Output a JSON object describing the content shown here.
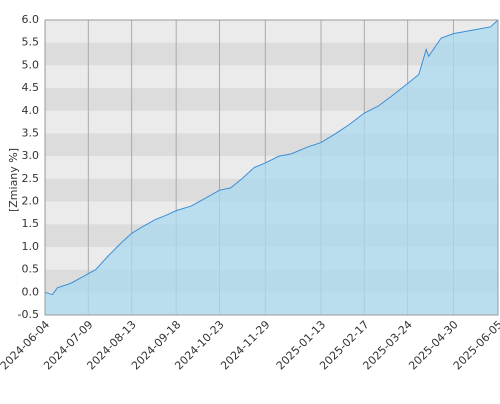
{
  "chart_data": {
    "type": "area",
    "y_label": "[Zmiany %]",
    "x": [
      "2024-06-04",
      "2024-06-10",
      "2024-06-14",
      "2024-06-25",
      "2024-07-05",
      "2024-07-15",
      "2024-07-25",
      "2024-08-05",
      "2024-08-13",
      "2024-08-22",
      "2024-09-01",
      "2024-09-10",
      "2024-09-18",
      "2024-09-30",
      "2024-10-10",
      "2024-10-23",
      "2024-11-01",
      "2024-11-10",
      "2024-11-20",
      "2024-11-29",
      "2024-12-10",
      "2024-12-20",
      "2025-01-02",
      "2025-01-13",
      "2025-01-25",
      "2025-02-05",
      "2025-02-17",
      "2025-02-28",
      "2025-03-10",
      "2025-03-24",
      "2025-04-02",
      "2025-04-08",
      "2025-04-10",
      "2025-04-20",
      "2025-04-30",
      "2025-05-10",
      "2025-05-20",
      "2025-05-30",
      "2025-06-05"
    ],
    "series": [
      {
        "color": "#3a8fd8",
        "values": [
          0.0,
          -0.05,
          0.1,
          0.2,
          0.35,
          0.5,
          0.8,
          1.1,
          1.3,
          1.45,
          1.6,
          1.7,
          1.8,
          1.9,
          2.05,
          2.25,
          2.3,
          2.5,
          2.75,
          2.85,
          3.0,
          3.05,
          3.2,
          3.3,
          3.5,
          3.7,
          3.95,
          4.1,
          4.3,
          4.6,
          4.8,
          5.35,
          5.2,
          5.6,
          5.7,
          5.75,
          5.8,
          5.85,
          6.0
        ]
      }
    ],
    "xlim": [
      "2024-06-04",
      "2025-06-05"
    ],
    "xticks": [
      "2024-06-04",
      "2024-07-09",
      "2024-08-13",
      "2024-09-18",
      "2024-10-23",
      "2024-11-29",
      "2025-01-13",
      "2025-02-17",
      "2025-03-24",
      "2025-04-30",
      "2025-06-05"
    ],
    "ylim": [
      -0.5,
      6
    ],
    "yticks": [
      -0.5,
      {
        "value": 0,
        "label": "0.0"
      },
      0.5,
      {
        "value": 1,
        "label": "1.0"
      },
      1.5,
      {
        "value": 2,
        "label": "2.0"
      },
      2.5,
      {
        "value": 3,
        "label": "3.0"
      },
      3.5,
      {
        "value": 4,
        "label": "4.0"
      },
      4.5,
      {
        "value": 5,
        "label": "5.0"
      },
      5.5,
      {
        "value": 6,
        "label": "6.0"
      }
    ],
    "grid": true,
    "fill": "#a9d9ef"
  }
}
